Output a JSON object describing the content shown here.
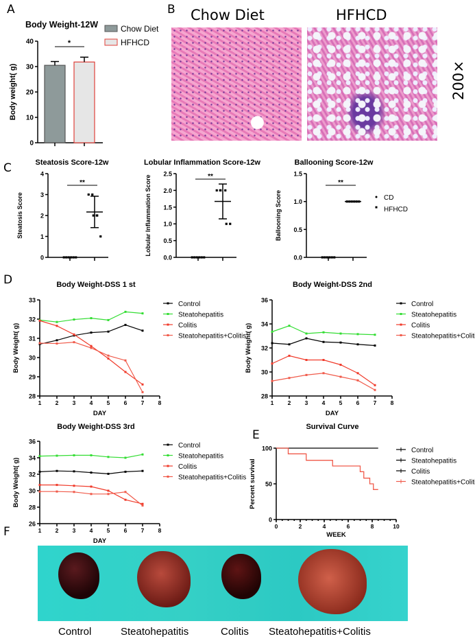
{
  "panel_labels": {
    "a": "A",
    "b": "B",
    "c": "C",
    "d": "D",
    "e": "E",
    "f": "F"
  },
  "histology": {
    "left_title": "Chow Diet",
    "right_title": "HFHCD",
    "magnification": "200×"
  },
  "photos": {
    "labels": [
      "Control",
      "Steatohepatitis",
      "Colitis",
      "Steatohepatitis+Colitis"
    ]
  },
  "colors": {
    "chow": "#8e9a9a",
    "hfhcd_edge": "#e0403a",
    "control": "#000000",
    "steato": "#33dd33",
    "colitis": "#f03a2a",
    "sc": "#f05a4a"
  },
  "chart_data": [
    {
      "id": "bw12",
      "type": "bar",
      "title": "Body Weight-12W",
      "ylabel": "Body weight( g)",
      "ylim": [
        0,
        40
      ],
      "yticks": [
        0,
        10,
        20,
        30,
        40
      ],
      "categories": [
        "Chow Diet",
        "HFHCD"
      ],
      "values": [
        30.5,
        31.8
      ],
      "errors": [
        1.5,
        1.9
      ],
      "significance": "*",
      "legend": [
        "Chow Diet",
        "HFHCD"
      ]
    },
    {
      "id": "steatosis",
      "type": "scatter",
      "title": "Steatosis Score-12w",
      "ylabel": "Steatosis Score",
      "ylim": [
        0,
        4
      ],
      "yticks": [
        0,
        1,
        2,
        3,
        4
      ],
      "groups": [
        {
          "name": "CD",
          "points": [
            0,
            0,
            0,
            0,
            0,
            0
          ],
          "mean": 0,
          "sd": 0
        },
        {
          "name": "HFHCD",
          "points": [
            3,
            3,
            2,
            2,
            2,
            1
          ],
          "mean": 2.17,
          "sd": 0.75
        }
      ],
      "significance": "**"
    },
    {
      "id": "lobular",
      "type": "scatter",
      "title": "Lobular Inflammation Score-12w",
      "ylabel": "Lobular Inflammation Score",
      "ylim": [
        0,
        2.5
      ],
      "yticks": [
        0.0,
        0.5,
        1.0,
        1.5,
        2.0,
        2.5
      ],
      "groups": [
        {
          "name": "CD",
          "points": [
            0,
            0,
            0,
            0,
            0,
            0
          ],
          "mean": 0,
          "sd": 0
        },
        {
          "name": "HFHCD",
          "points": [
            2,
            2,
            2,
            2,
            1,
            1
          ],
          "mean": 1.67,
          "sd": 0.52
        }
      ],
      "significance": "**"
    },
    {
      "id": "ballooning",
      "type": "scatter",
      "title": "Ballooning Score-12w",
      "ylabel": "Ballooning Score",
      "ylim": [
        0,
        1.5
      ],
      "yticks": [
        0.0,
        0.5,
        1.0,
        1.5
      ],
      "groups": [
        {
          "name": "CD",
          "points": [
            0,
            0,
            0,
            0,
            0,
            0
          ],
          "mean": 0,
          "sd": 0
        },
        {
          "name": "HFHCD",
          "points": [
            1,
            1,
            1,
            1,
            1,
            1
          ],
          "mean": 1,
          "sd": 0
        }
      ],
      "significance": "**",
      "legend": [
        "CD",
        "HFHCD"
      ]
    },
    {
      "id": "dss1",
      "type": "line",
      "title": "Body Weight-DSS 1 st",
      "xlabel": "DAY",
      "ylabel": "Body Weight( g)",
      "xlim": [
        1,
        8
      ],
      "ylim": [
        28,
        33
      ],
      "yticks": [
        28,
        29,
        30,
        31,
        32,
        33
      ],
      "x": [
        1,
        2,
        3,
        4,
        5,
        6,
        7
      ],
      "series": [
        {
          "name": "Control",
          "values": [
            30.7,
            30.9,
            31.15,
            31.3,
            31.35,
            31.7,
            31.4
          ]
        },
        {
          "name": "Steatohepatitis",
          "values": [
            31.95,
            31.85,
            31.98,
            32.05,
            31.95,
            32.38,
            32.3
          ]
        },
        {
          "name": "Colitis",
          "values": [
            31.92,
            31.65,
            31.2,
            30.6,
            29.95,
            29.25,
            28.6
          ]
        },
        {
          "name": "Steatohepatitis+Colitis",
          "values": [
            30.75,
            30.73,
            30.8,
            30.5,
            30.1,
            29.85,
            28.2
          ]
        }
      ]
    },
    {
      "id": "dss2",
      "type": "line",
      "title": "Body Weight-DSS 2nd",
      "xlabel": "DAY",
      "ylabel": "Body Weight( g)",
      "xlim": [
        1,
        8
      ],
      "ylim": [
        28,
        36
      ],
      "yticks": [
        28,
        30,
        32,
        34,
        36
      ],
      "x": [
        1,
        2,
        3,
        4,
        5,
        6,
        7
      ],
      "series": [
        {
          "name": "Control",
          "values": [
            32.4,
            32.3,
            32.8,
            32.5,
            32.45,
            32.3,
            32.2
          ]
        },
        {
          "name": "Steatohepatitis",
          "values": [
            33.35,
            33.85,
            33.2,
            33.3,
            33.2,
            33.15,
            33.1
          ]
        },
        {
          "name": "Colitis",
          "values": [
            30.7,
            31.35,
            31.0,
            31.0,
            30.6,
            29.9,
            28.9
          ]
        },
        {
          "name": "Steatohepatitis+Colitis",
          "values": [
            29.25,
            29.5,
            29.75,
            29.9,
            29.6,
            29.3,
            28.5
          ]
        }
      ]
    },
    {
      "id": "dss3",
      "type": "line",
      "title": "Body Weight-DSS 3rd",
      "xlabel": "DAY",
      "ylabel": "Body Weight( g)",
      "xlim": [
        1,
        8
      ],
      "ylim": [
        26,
        36
      ],
      "yticks": [
        26,
        28,
        30,
        32,
        34,
        36
      ],
      "x": [
        1,
        2,
        3,
        4,
        5,
        6,
        7
      ],
      "series": [
        {
          "name": "Control",
          "values": [
            32.3,
            32.4,
            32.35,
            32.2,
            32.05,
            32.3,
            32.4
          ]
        },
        {
          "name": "Steatohepatitis",
          "values": [
            34.2,
            34.25,
            34.3,
            34.3,
            34.1,
            34.0,
            34.4
          ]
        },
        {
          "name": "Colitis",
          "values": [
            30.7,
            30.7,
            30.6,
            30.5,
            30.0,
            28.9,
            28.4
          ]
        },
        {
          "name": "Steatohepatitis+Colitis",
          "values": [
            29.9,
            29.9,
            29.85,
            29.6,
            29.6,
            29.85,
            28.2
          ]
        }
      ]
    },
    {
      "id": "survival",
      "type": "line",
      "title": "Survival Curve",
      "xlabel": "WEEK",
      "ylabel": "Percent survival",
      "xlim": [
        0,
        10
      ],
      "ylim": [
        0,
        100
      ],
      "yticks": [
        0,
        50,
        100
      ],
      "xticks": [
        0,
        2,
        4,
        6,
        8,
        10
      ],
      "series": [
        {
          "name": "Control",
          "steps": [
            [
              0,
              100
            ],
            [
              8.5,
              100
            ]
          ]
        },
        {
          "name": "Steatohepatitis",
          "steps": []
        },
        {
          "name": "Colitis",
          "steps": []
        },
        {
          "name": "Steatohepatitis+Colitis",
          "steps": [
            [
              0,
              100
            ],
            [
              1,
              92
            ],
            [
              2.5,
              83
            ],
            [
              4.7,
              75
            ],
            [
              7,
              67
            ],
            [
              7.3,
              58
            ],
            [
              7.8,
              50
            ],
            [
              8.1,
              42
            ],
            [
              8.5,
              42
            ]
          ]
        }
      ]
    }
  ]
}
